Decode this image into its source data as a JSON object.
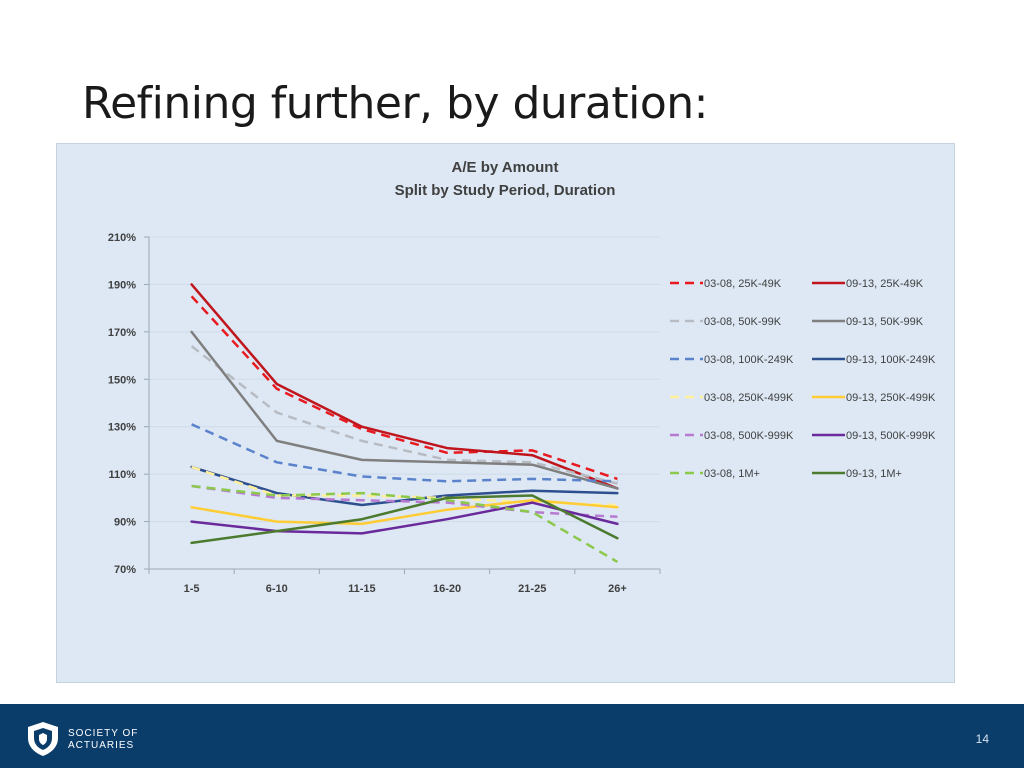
{
  "slide": {
    "title": "Refining further, by duration:",
    "page_number": "14",
    "org_name": "SOCIETY OF\nACTUARIES"
  },
  "chart_data": {
    "type": "line",
    "title": "A/E by Amount",
    "subtitle": "Split by Study Period, Duration",
    "categories": [
      "1-5",
      "6-10",
      "11-15",
      "16-20",
      "21-25",
      "26+"
    ],
    "ylim": [
      70,
      210
    ],
    "yticks": [
      "70%",
      "90%",
      "110%",
      "130%",
      "150%",
      "170%",
      "190%",
      "210%"
    ],
    "grid": true,
    "legend_position": "right",
    "series": [
      {
        "name": "03-08,  25K-49K",
        "style": "dashed",
        "color": "#e8191f",
        "values": [
          185,
          146,
          129,
          119,
          120,
          108
        ]
      },
      {
        "name": "09-13,  25K-49K",
        "style": "solid",
        "color": "#c0151c",
        "values": [
          190,
          148,
          130,
          121,
          118,
          104
        ]
      },
      {
        "name": "03-08,  50K-99K",
        "style": "dashed",
        "color": "#b8bcc2",
        "values": [
          164,
          136,
          124,
          116,
          115,
          106
        ]
      },
      {
        "name": "09-13,  50K-99K",
        "style": "solid",
        "color": "#7f7f7f",
        "values": [
          170,
          124,
          116,
          115,
          114,
          104
        ]
      },
      {
        "name": "03-08,  100K-249K",
        "style": "dashed",
        "color": "#5b83cb",
        "values": [
          131,
          115,
          109,
          107,
          108,
          107
        ]
      },
      {
        "name": "09-13,  100K-249K",
        "style": "solid",
        "color": "#2e4f8f",
        "values": [
          113,
          102,
          97,
          101,
          103,
          102
        ]
      },
      {
        "name": "03-08,  250K-499K",
        "style": "dashed",
        "color": "#fff099",
        "values": [
          113,
          101,
          101,
          100,
          98,
          97
        ]
      },
      {
        "name": "09-13,  250K-499K",
        "style": "solid",
        "color": "#ffcc33",
        "values": [
          96,
          90,
          89,
          95,
          99,
          96
        ]
      },
      {
        "name": "03-08,  500K-999K",
        "style": "dashed",
        "color": "#b77ad0",
        "values": [
          105,
          100,
          99,
          98,
          94,
          92
        ]
      },
      {
        "name": "09-13,  500K-999K",
        "style": "solid",
        "color": "#6a2a9b",
        "values": [
          90,
          86,
          85,
          91,
          98,
          89
        ]
      },
      {
        "name": "03-08,  1M+",
        "style": "dashed",
        "color": "#8cc84b",
        "values": [
          105,
          101,
          102,
          99,
          94,
          73
        ]
      },
      {
        "name": "09-13,  1M+",
        "style": "solid",
        "color": "#4c7b2f",
        "values": [
          81,
          86,
          91,
          100,
          101,
          83
        ]
      }
    ]
  },
  "colors": {
    "panel_bg": "#dde8f4",
    "footer_bg": "#0b3d6a",
    "axis": "#9aa8b6",
    "gridline": "#cfdbe8"
  }
}
